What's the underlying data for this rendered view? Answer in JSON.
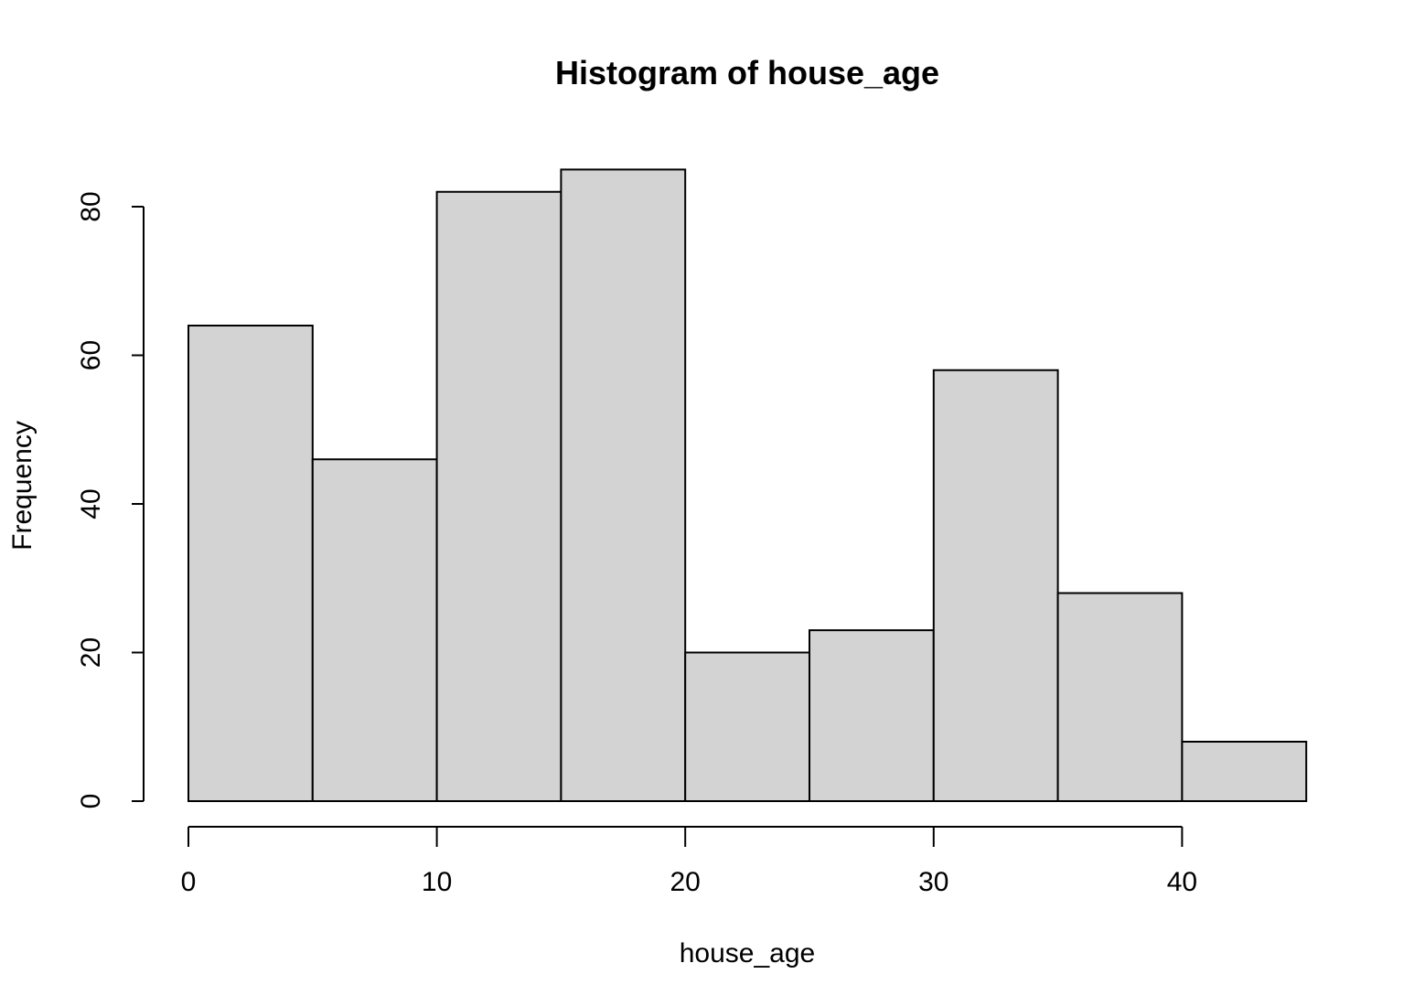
{
  "chart_data": {
    "type": "bar",
    "title": "Histogram of house_age",
    "xlabel": "house_age",
    "ylabel": "Frequency",
    "bins": [
      {
        "from": 0,
        "to": 5,
        "count": 64
      },
      {
        "from": 5,
        "to": 10,
        "count": 46
      },
      {
        "from": 10,
        "to": 15,
        "count": 82
      },
      {
        "from": 15,
        "to": 20,
        "count": 85
      },
      {
        "from": 20,
        "to": 25,
        "count": 20
      },
      {
        "from": 25,
        "to": 30,
        "count": 23
      },
      {
        "from": 30,
        "to": 35,
        "count": 58
      },
      {
        "from": 35,
        "to": 40,
        "count": 28
      },
      {
        "from": 40,
        "to": 45,
        "count": 8
      }
    ],
    "xticks": [
      0,
      10,
      20,
      30,
      40
    ],
    "yticks": [
      0,
      20,
      40,
      60,
      80
    ],
    "xlim": [
      0,
      45
    ],
    "ylim": [
      0,
      85
    ],
    "bar_color": "#d3d3d3",
    "edge_color": "#000000",
    "grid": false
  }
}
